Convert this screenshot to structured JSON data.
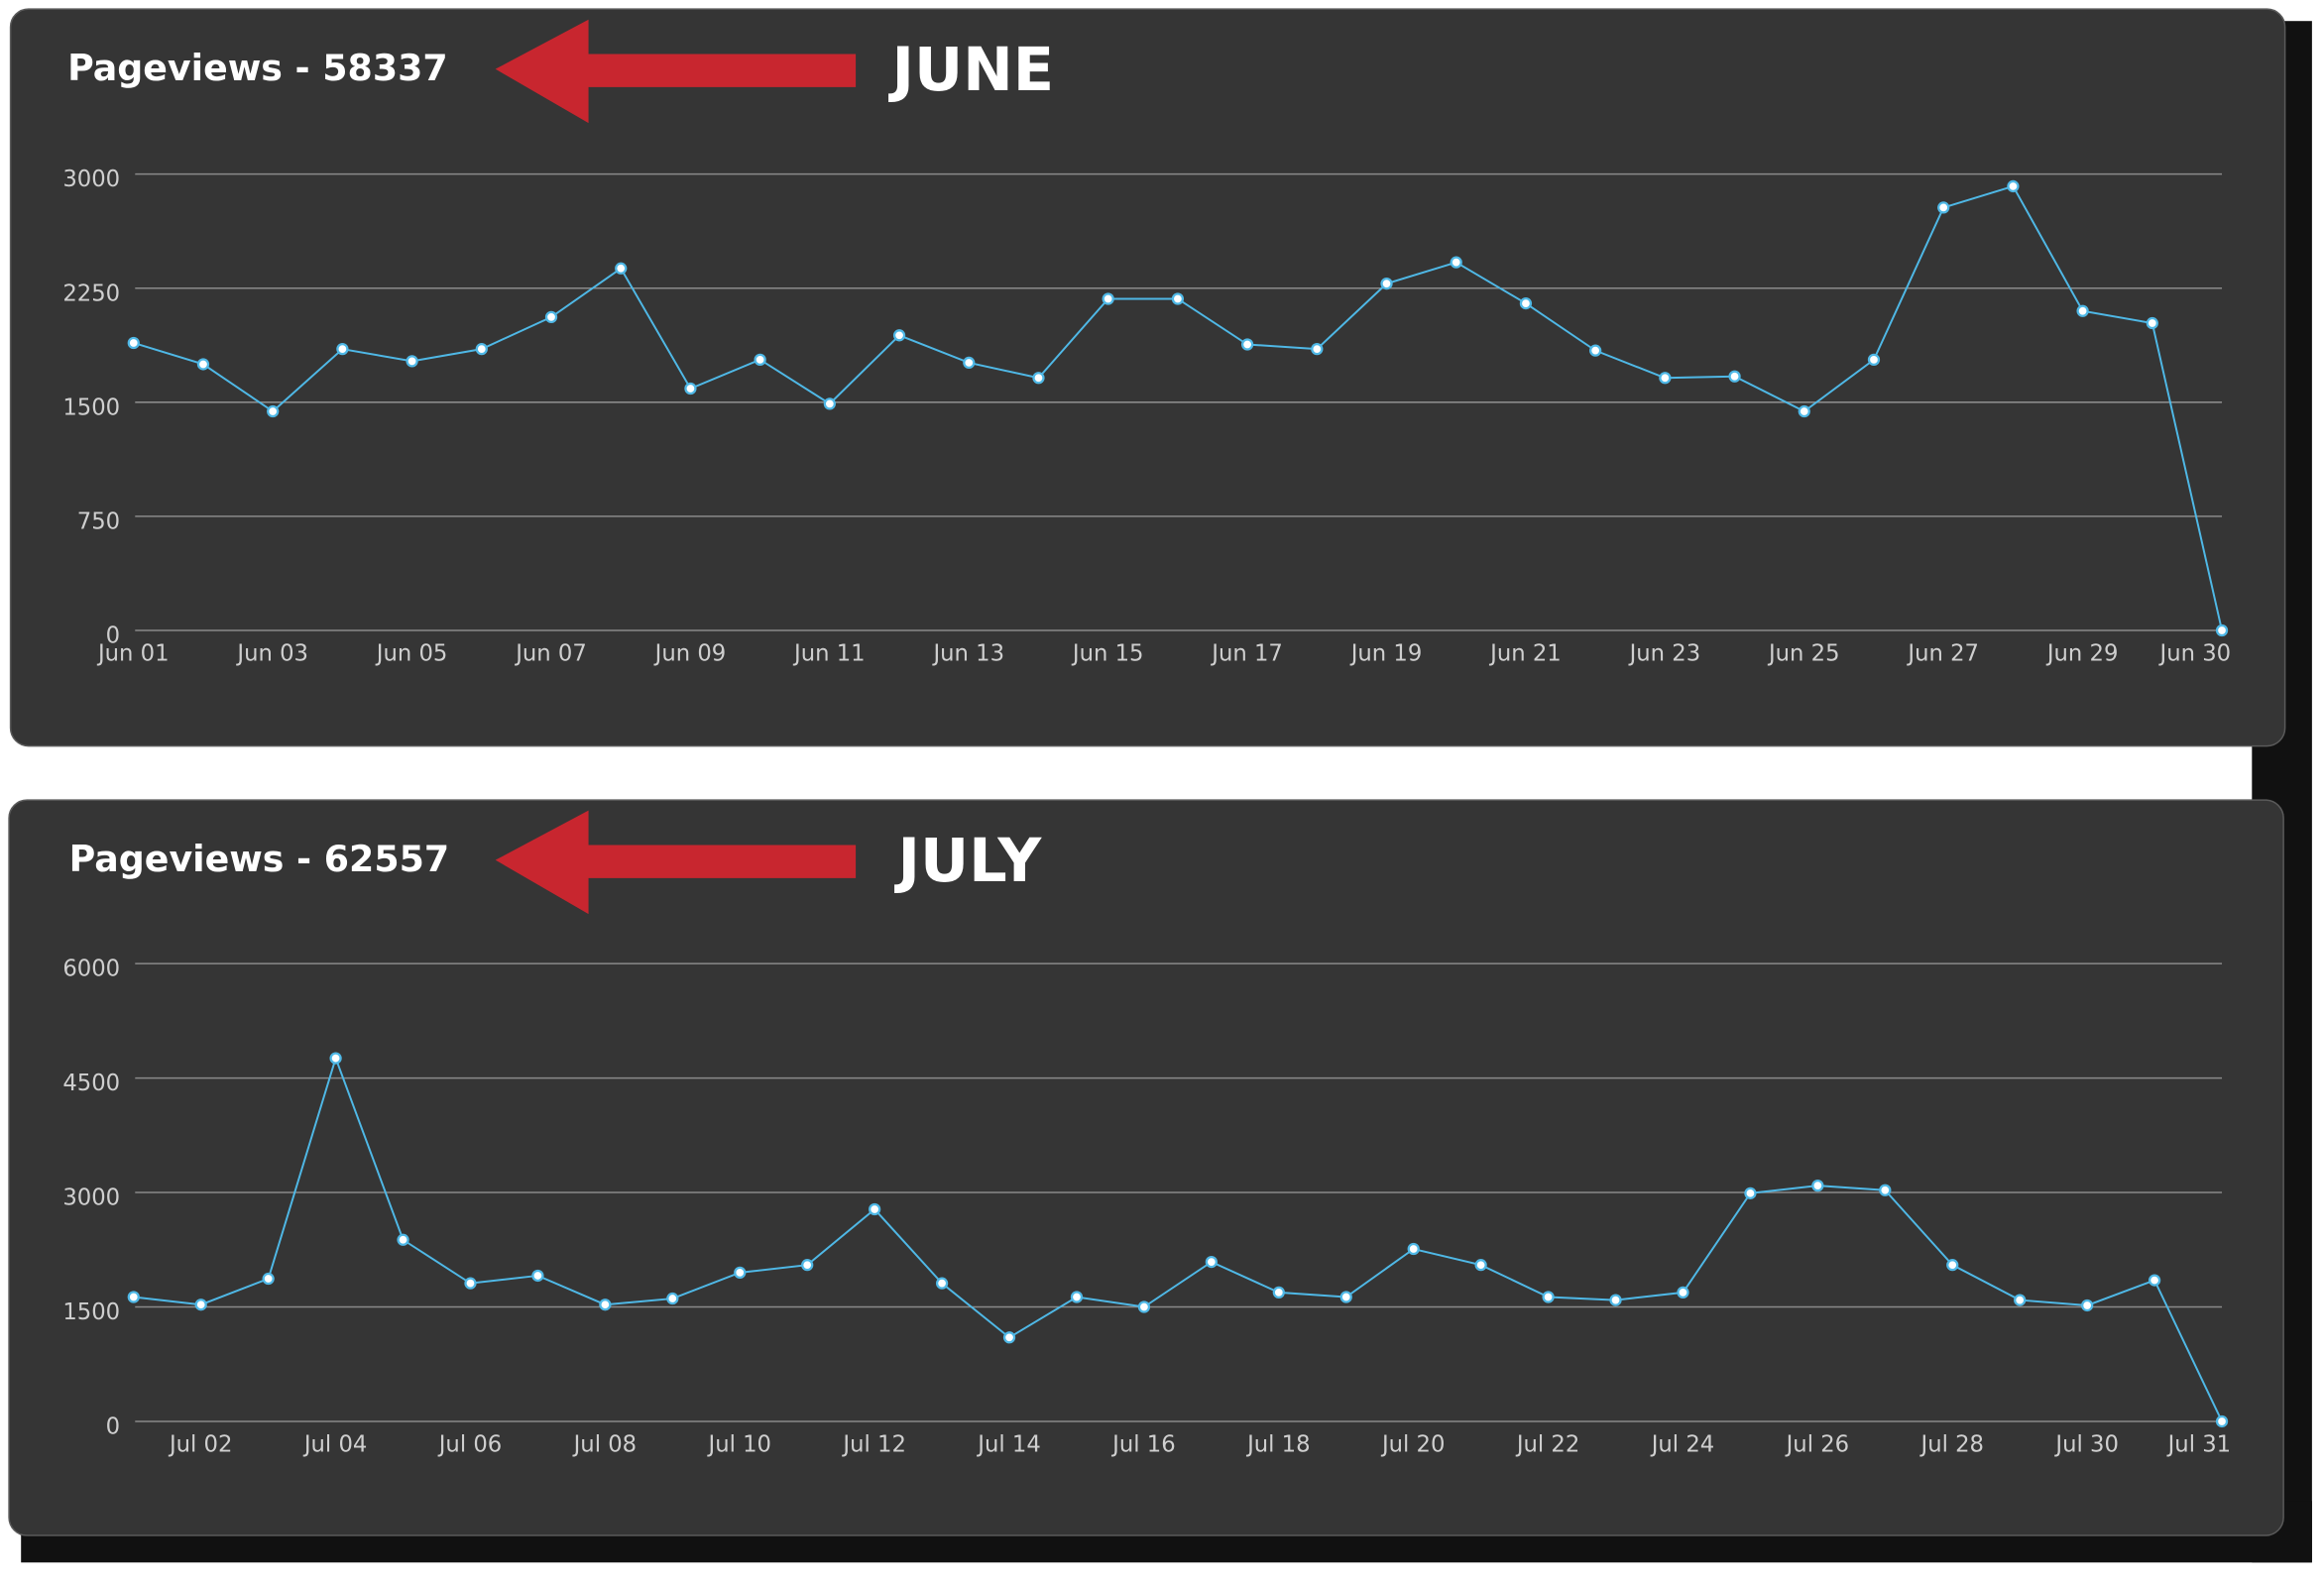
{
  "chart_data": [
    {
      "type": "line",
      "title": "Pageviews - 58337",
      "annotation": "JUNE",
      "categories": [
        "Jun 01",
        null,
        "Jun 03",
        null,
        "Jun 05",
        null,
        "Jun 07",
        null,
        "Jun 09",
        null,
        "Jun 11",
        null,
        "Jun 13",
        null,
        "Jun 15",
        null,
        "Jun 17",
        null,
        "Jun 19",
        null,
        "Jun 21",
        null,
        "Jun 23",
        null,
        "Jun 25",
        null,
        "Jun 27",
        null,
        "Jun 29",
        null,
        "Jun 30"
      ],
      "series": [
        {
          "color": "#4fb8e6",
          "values": [
            1890,
            1750,
            1440,
            1850,
            1770,
            1850,
            2060,
            2380,
            1590,
            1780,
            1490,
            1940,
            1760,
            1660,
            2180,
            2180,
            1880,
            1850,
            2280,
            2420,
            2150,
            1840,
            1660,
            1670,
            1440,
            1780,
            2780,
            2920,
            2100,
            2020,
            0
          ]
        }
      ],
      "ylim": [
        0,
        3000
      ],
      "yticks": [
        0,
        750,
        1500,
        2250,
        3000
      ],
      "grid": true
    },
    {
      "type": "line",
      "title": "Pageviews - 62557",
      "annotation": "JULY",
      "categories": [
        null,
        "Jul 02",
        null,
        "Jul 04",
        null,
        "Jul 06",
        null,
        "Jul 08",
        null,
        "Jul 10",
        null,
        "Jul 12",
        null,
        "Jul 14",
        null,
        "Jul 16",
        null,
        "Jul 18",
        null,
        "Jul 20",
        null,
        "Jul 22",
        null,
        "Jul 24",
        null,
        "Jul 26",
        null,
        "Jul 28",
        null,
        "Jul 30",
        null,
        "Jul 31"
      ],
      "series": [
        {
          "color": "#4fb8e6",
          "values": [
            1630,
            1530,
            1870,
            4760,
            2380,
            1810,
            1910,
            1530,
            1610,
            1950,
            2050,
            2780,
            1810,
            1100,
            1630,
            1500,
            2090,
            1690,
            1630,
            2260,
            2050,
            1630,
            1590,
            1690,
            2990,
            3090,
            3030,
            2050,
            1590,
            1520,
            1850,
            0
          ]
        }
      ],
      "ylim": [
        0,
        6000
      ],
      "yticks": [
        0,
        1500,
        3000,
        4500,
        6000
      ],
      "grid": true
    }
  ]
}
